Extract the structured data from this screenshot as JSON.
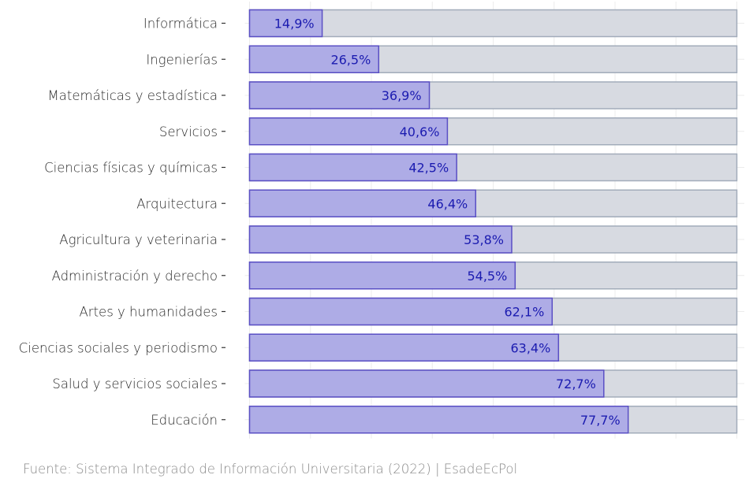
{
  "chart_data": {
    "type": "bar",
    "orientation": "horizontal",
    "categories": [
      "Informática",
      "Ingenierías",
      "Matemáticas y estadística",
      "Servicios",
      "Ciencias físicas y químicas",
      "Arquitectura",
      "Agricultura y veterinaria",
      "Administración y derecho",
      "Artes y humanidades",
      "Ciencias sociales y periodismo",
      "Salud y servicios sociales",
      "Educación"
    ],
    "values": [
      14.9,
      26.5,
      36.9,
      40.6,
      42.5,
      46.4,
      53.8,
      54.5,
      62.1,
      63.4,
      72.7,
      77.7
    ],
    "value_labels": [
      "14,9%",
      "26,5%",
      "36,9%",
      "40,6%",
      "42,5%",
      "46,4%",
      "53,8%",
      "54,5%",
      "62,1%",
      "63,4%",
      "72,7%",
      "77,7%"
    ],
    "xlim": [
      0,
      100
    ],
    "background_total": 100,
    "grid": true,
    "colors": {
      "bar_fill": "#aeace6",
      "bar_stroke": "#5a4fc4",
      "background_fill": "#d7dae1",
      "background_stroke": "#a2acba",
      "value_text": "#1b1bb0",
      "label_text": "#2b2b2b",
      "grid": "#ececec"
    }
  },
  "source": {
    "text": "Fuente:  Sistema Integrado de Información Universitaria (2022) | EsadeEcPol"
  }
}
